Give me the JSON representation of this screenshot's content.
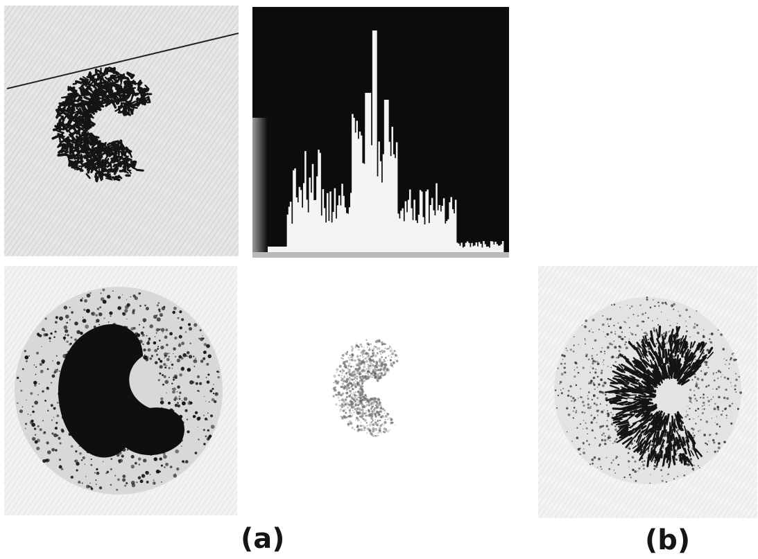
{
  "figure": {
    "captions": {
      "a": "(a)",
      "b": "(b)"
    },
    "colors": {
      "ink": "#141414",
      "paper_gray": "#dcdcdc",
      "histogram_bg": "#0c0c0c",
      "histogram_fg": "#f4f4f4",
      "background": "#ffffff"
    },
    "panels": [
      {
        "id": "thresholded-cell-with-scanline",
        "content": "cell-image"
      },
      {
        "id": "intensity-histogram",
        "content": "histogram"
      },
      {
        "id": "cell-dark-core",
        "content": "cell-image"
      },
      {
        "id": "cell-faint",
        "content": "cell-image"
      },
      {
        "id": "cell-enhanced-edges",
        "content": "cell-image"
      }
    ]
  }
}
